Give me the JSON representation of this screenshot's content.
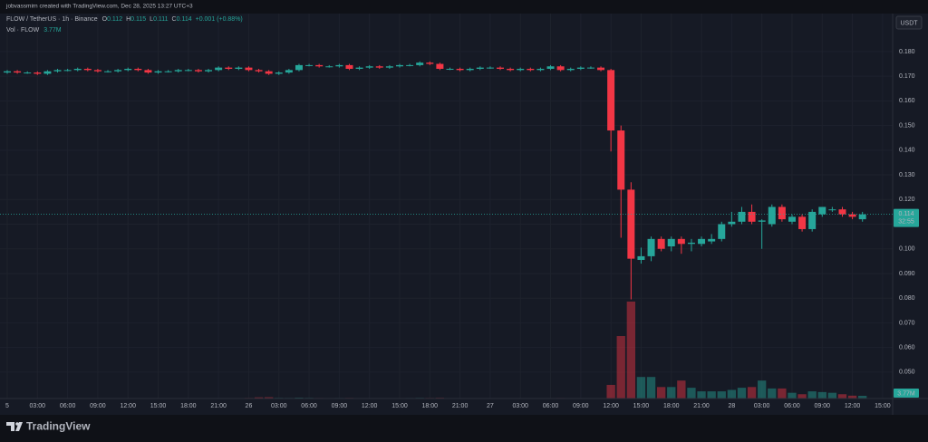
{
  "chart_data": {
    "type": "candlestick",
    "attribution": "jobvassmirn created with TradingView.com, Dec 28, 2025 13:27 UTC+3",
    "symbol": "FLOW / TetherUS · 1h · Binance",
    "legend": [
      {
        "key": "O",
        "value": "0.112"
      },
      {
        "key": "H",
        "value": "0.115"
      },
      {
        "key": "L",
        "value": "0.111"
      },
      {
        "key": "C",
        "value": "0.114"
      }
    ],
    "change": "+0.001 (+0.88%)",
    "volume_title": "Vol · FLOW",
    "volume_value": "3.77M",
    "currency": "USDT",
    "countdown": "32:55",
    "brand": "TradingView",
    "up_color": "#26a69a",
    "down_color": "#f23645",
    "grid": true,
    "open": [
      0.1715,
      0.172,
      0.1715,
      0.1715,
      0.171,
      0.172,
      0.1725,
      0.1725,
      0.173,
      0.1725,
      0.172,
      0.172,
      0.1725,
      0.173,
      0.1725,
      0.1715,
      0.172,
      0.172,
      0.1725,
      0.1725,
      0.172,
      0.1725,
      0.1735,
      0.173,
      0.1735,
      0.1725,
      0.172,
      0.171,
      0.1715,
      0.1725,
      0.1745,
      0.1745,
      0.174,
      0.174,
      0.1745,
      0.173,
      0.1735,
      0.174,
      0.1735,
      0.174,
      0.1745,
      0.1745,
      0.1755,
      0.175,
      0.173,
      0.173,
      0.1725,
      0.173,
      0.1735,
      0.1735,
      0.173,
      0.1725,
      0.173,
      0.1725,
      0.173,
      0.174,
      0.1725,
      0.173,
      0.1735,
      0.1735,
      0.1725,
      0.148,
      0.124,
      0.0955,
      0.097,
      0.104,
      0.101,
      0.104,
      0.102,
      0.102,
      0.103,
      0.104,
      0.11,
      0.111,
      0.115,
      0.111,
      0.11,
      0.117,
      0.111,
      0.113,
      0.108,
      0.114,
      0.116,
      0.116,
      0.114,
      0.112
    ],
    "high": [
      0.1725,
      0.1725,
      0.172,
      0.172,
      0.1725,
      0.173,
      0.173,
      0.1735,
      0.1735,
      0.173,
      0.1725,
      0.173,
      0.1735,
      0.1735,
      0.173,
      0.1725,
      0.1725,
      0.173,
      0.173,
      0.173,
      0.173,
      0.174,
      0.174,
      0.174,
      0.174,
      0.173,
      0.1725,
      0.172,
      0.173,
      0.175,
      0.175,
      0.175,
      0.1745,
      0.175,
      0.175,
      0.174,
      0.1745,
      0.1745,
      0.1745,
      0.175,
      0.175,
      0.176,
      0.176,
      0.1755,
      0.1735,
      0.1735,
      0.1735,
      0.174,
      0.174,
      0.174,
      0.1735,
      0.1735,
      0.1735,
      0.1735,
      0.1745,
      0.1745,
      0.1735,
      0.174,
      0.174,
      0.174,
      0.173,
      0.15,
      0.127,
      0.1005,
      0.105,
      0.105,
      0.105,
      0.105,
      0.104,
      0.105,
      0.106,
      0.111,
      0.115,
      0.117,
      0.118,
      0.112,
      0.118,
      0.118,
      0.114,
      0.114,
      0.116,
      0.117,
      0.117,
      0.117,
      0.115,
      0.115
    ],
    "low": [
      0.171,
      0.171,
      0.171,
      0.1705,
      0.1705,
      0.1715,
      0.172,
      0.172,
      0.172,
      0.1715,
      0.1715,
      0.1715,
      0.172,
      0.172,
      0.171,
      0.171,
      0.1715,
      0.1715,
      0.172,
      0.1715,
      0.1715,
      0.172,
      0.1725,
      0.1725,
      0.172,
      0.1715,
      0.1705,
      0.1705,
      0.171,
      0.172,
      0.174,
      0.1735,
      0.1735,
      0.1735,
      0.1725,
      0.1725,
      0.173,
      0.173,
      0.173,
      0.1735,
      0.174,
      0.174,
      0.1745,
      0.1725,
      0.1725,
      0.172,
      0.172,
      0.1725,
      0.173,
      0.1725,
      0.172,
      0.172,
      0.172,
      0.172,
      0.1725,
      0.172,
      0.172,
      0.1725,
      0.173,
      0.172,
      0.1395,
      0.1045,
      0.0795,
      0.094,
      0.095,
      0.099,
      0.099,
      0.098,
      0.099,
      0.101,
      0.102,
      0.103,
      0.109,
      0.11,
      0.11,
      0.1,
      0.109,
      0.111,
      0.11,
      0.107,
      0.107,
      0.113,
      0.115,
      0.113,
      0.112,
      0.111
    ],
    "close": [
      0.172,
      0.1715,
      0.1715,
      0.171,
      0.172,
      0.1725,
      0.1725,
      0.173,
      0.1725,
      0.172,
      0.172,
      0.1725,
      0.173,
      0.1725,
      0.1715,
      0.172,
      0.172,
      0.1725,
      0.1725,
      0.172,
      0.1725,
      0.1735,
      0.173,
      0.1735,
      0.1725,
      0.172,
      0.171,
      0.1715,
      0.1725,
      0.1745,
      0.1745,
      0.174,
      0.174,
      0.1745,
      0.173,
      0.1735,
      0.174,
      0.1735,
      0.174,
      0.1745,
      0.1745,
      0.1755,
      0.175,
      0.173,
      0.173,
      0.1725,
      0.173,
      0.1735,
      0.1735,
      0.173,
      0.1725,
      0.173,
      0.1725,
      0.173,
      0.174,
      0.1725,
      0.173,
      0.1735,
      0.1735,
      0.1725,
      0.148,
      0.124,
      0.096,
      0.097,
      0.104,
      0.1,
      0.104,
      0.102,
      0.1025,
      0.104,
      0.104,
      0.11,
      0.111,
      0.115,
      0.111,
      0.1115,
      0.117,
      0.112,
      0.113,
      0.108,
      0.115,
      0.117,
      0.116,
      0.114,
      0.113,
      0.114
    ],
    "volume": [
      0.6,
      0.5,
      0.4,
      0.5,
      0.6,
      0.5,
      0.4,
      0.4,
      0.5,
      0.4,
      0.3,
      0.4,
      0.5,
      0.4,
      0.6,
      0.5,
      0.4,
      0.4,
      0.3,
      0.4,
      0.5,
      0.6,
      0.5,
      0.5,
      0.8,
      1.6,
      1.8,
      0.9,
      0.8,
      1.2,
      0.9,
      0.7,
      0.6,
      0.7,
      0.8,
      0.6,
      0.6,
      0.5,
      0.5,
      0.6,
      0.7,
      0.9,
      0.8,
      1.0,
      0.6,
      0.5,
      0.5,
      0.5,
      0.4,
      0.4,
      0.5,
      0.4,
      0.5,
      0.4,
      0.6,
      0.7,
      0.5,
      0.5,
      0.4,
      0.6,
      19,
      87,
      135,
      30,
      30,
      16,
      16,
      25,
      15,
      10,
      10,
      10,
      12,
      15,
      16,
      25,
      14,
      14,
      8,
      6,
      10,
      9,
      8,
      6,
      4,
      3.77
    ],
    "xlim": [
      -0.72,
      88.0
    ],
    "xticks": [
      {
        "value": 0,
        "label": "5"
      },
      {
        "value": 3,
        "label": "03:00"
      },
      {
        "value": 6,
        "label": "06:00"
      },
      {
        "value": 9,
        "label": "09:00"
      },
      {
        "value": 12,
        "label": "12:00"
      },
      {
        "value": 15,
        "label": "15:00"
      },
      {
        "value": 18,
        "label": "18:00"
      },
      {
        "value": 21,
        "label": "21:00"
      },
      {
        "value": 24,
        "label": "26"
      },
      {
        "value": 27,
        "label": "03:00"
      },
      {
        "value": 30,
        "label": "06:00"
      },
      {
        "value": 33,
        "label": "09:00"
      },
      {
        "value": 36,
        "label": "12:00"
      },
      {
        "value": 39,
        "label": "15:00"
      },
      {
        "value": 42,
        "label": "18:00"
      },
      {
        "value": 45,
        "label": "21:00"
      },
      {
        "value": 48,
        "label": "27"
      },
      {
        "value": 51,
        "label": "03:00"
      },
      {
        "value": 54,
        "label": "06:00"
      },
      {
        "value": 57,
        "label": "09:00"
      },
      {
        "value": 60,
        "label": "12:00"
      },
      {
        "value": 63,
        "label": "15:00"
      },
      {
        "value": 66,
        "label": "18:00"
      },
      {
        "value": 69,
        "label": "21:00"
      },
      {
        "value": 72,
        "label": "28"
      },
      {
        "value": 75,
        "label": "03:00"
      },
      {
        "value": 78,
        "label": "06:00"
      },
      {
        "value": 81,
        "label": "09:00"
      },
      {
        "value": 84,
        "label": "12:00"
      },
      {
        "value": 87,
        "label": "15:00"
      }
    ],
    "ylim": [
      0.0393,
      0.1954
    ],
    "yticks": [
      {
        "value": 0.05,
        "label": "0.050"
      },
      {
        "value": 0.06,
        "label": "0.060"
      },
      {
        "value": 0.07,
        "label": "0.070"
      },
      {
        "value": 0.08,
        "label": "0.080"
      },
      {
        "value": 0.09,
        "label": "0.090"
      },
      {
        "value": 0.1,
        "label": "0.100"
      },
      {
        "value": 0.11,
        "label": "0.110"
      },
      {
        "value": 0.12,
        "label": "0.120"
      },
      {
        "value": 0.13,
        "label": "0.130"
      },
      {
        "value": 0.14,
        "label": "0.140"
      },
      {
        "value": 0.15,
        "label": "0.150"
      },
      {
        "value": 0.16,
        "label": "0.160"
      },
      {
        "value": 0.17,
        "label": "0.170"
      },
      {
        "value": 0.18,
        "label": "0.180"
      }
    ],
    "y2lim": [
      0,
      536
    ]
  }
}
